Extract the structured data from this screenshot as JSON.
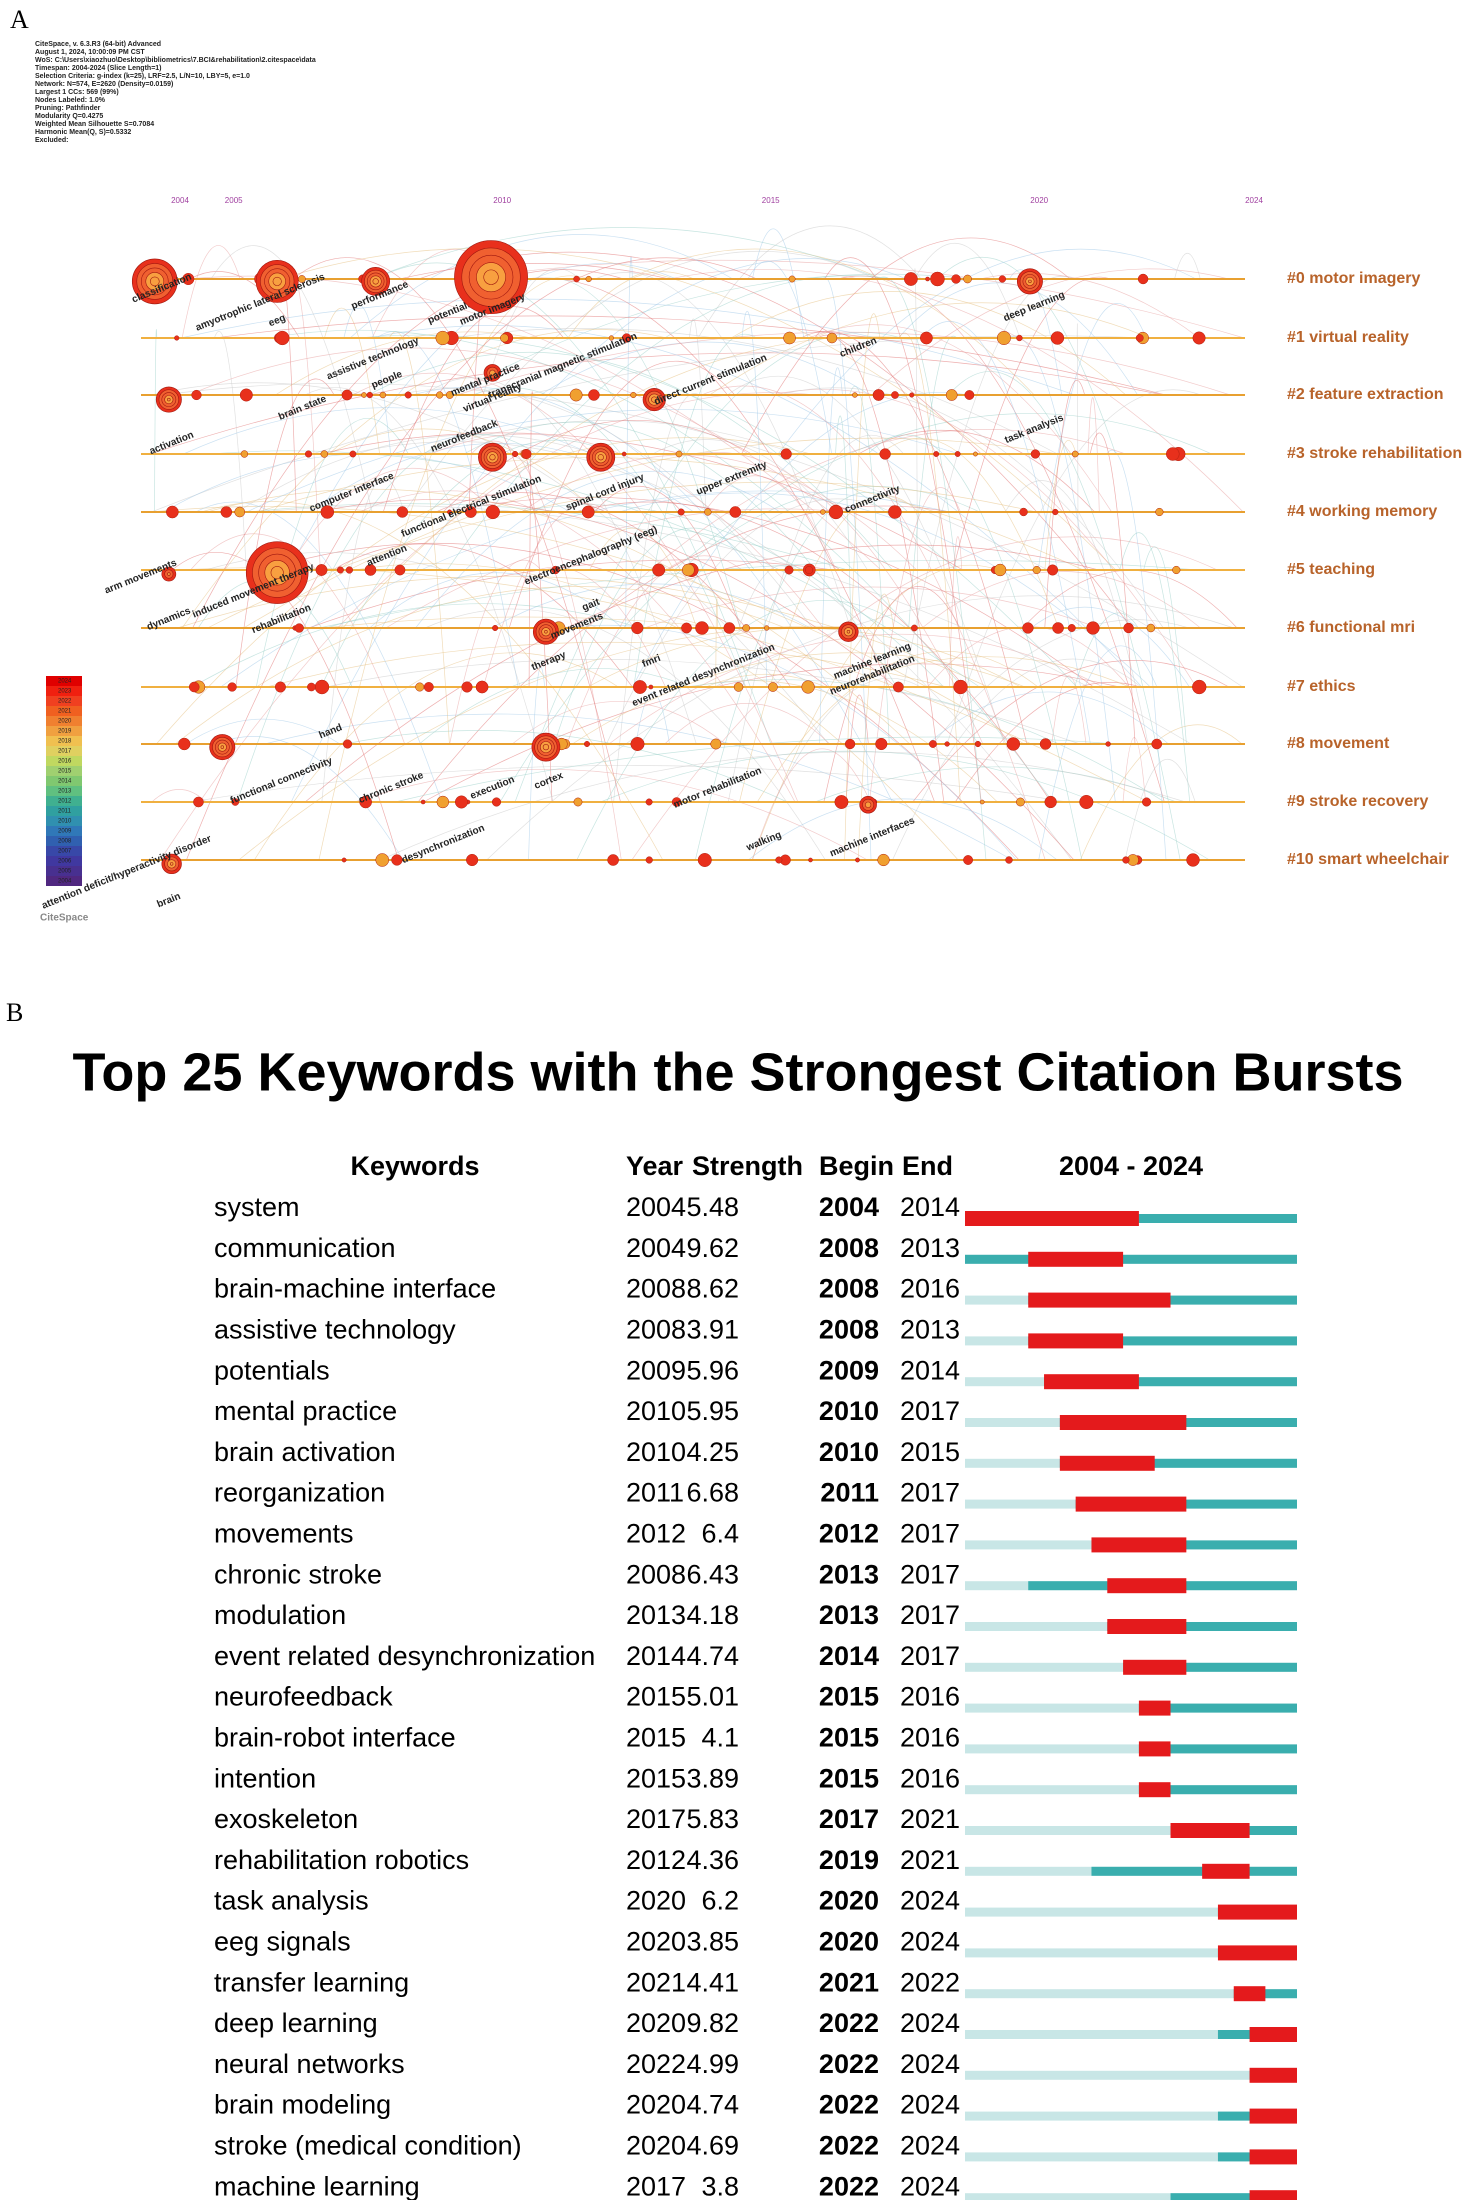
{
  "panel_a": {
    "label": "A",
    "info": [
      "CiteSpace, v. 6.3.R3 (64-bit) Advanced",
      "August 1, 2024, 10:00:09 PM CST",
      "WoS: C:\\Users\\xiaozhuo\\Desktop\\bibliometrics\\7.BCI&rehabilitation\\2.citespace\\data",
      "Timespan: 2004-2024 (Slice Length=1)",
      "Selection Criteria: g-index (k=25), LRF=2.5, L/N=10, LBY=5, e=1.0",
      "Network: N=574, E=2620 (Density=0.0159)",
      "Largest 1 CCs: 569 (99%)",
      "Nodes Labeled: 1.0%",
      "Pruning: Pathfinder",
      "Modularity Q=0.4275",
      "Weighted Mean Silhouette S=0.7084",
      "Harmonic Mean(Q, S)=0.5332",
      "Excluded:"
    ],
    "years": [
      2004,
      2005,
      2010,
      2015,
      2020,
      2024
    ],
    "clusters": [
      "#0 motor imagery",
      "#1 virtual reality",
      "#2 feature extraction",
      "#3 stroke rehabilitation",
      "#4 working memory",
      "#5 teaching",
      "#6 functional mri",
      "#7 ethics",
      "#8 movement",
      "#9 stroke recovery",
      "#10 smart wheelchair"
    ],
    "keywords": [
      "classification",
      "amyotrophic lateral sclerosis",
      "eeg",
      "performance",
      "potentials",
      "motor imagery",
      "assistive technology",
      "people",
      "mental practice",
      "virtual reality",
      "transcranial magnetic stimulation",
      "direct current stimulation",
      "activation",
      "brain state",
      "computer interface",
      "neurofeedback",
      "functional electrical stimulation",
      "spinal cord injury",
      "upper extremity",
      "induced movement therapy",
      "rehabilitation",
      "dynamics",
      "arm movements",
      "attention",
      "electroencephalography (eeg)",
      "gait",
      "movements",
      "therapy",
      "fmri",
      "event related desynchronization",
      "machine learning",
      "neurorehabilitation",
      "chronic stroke",
      "functional connectivity",
      "cortex",
      "execution",
      "motor rehabilitation",
      "desynchronization",
      "walking",
      "machine interfaces",
      "brain",
      "attention deficit/hyperactivity disorder",
      "hand",
      "connectivity",
      "children",
      "deep learning",
      "task analysis"
    ],
    "legend_years": [
      2024,
      2023,
      2022,
      2021,
      2020,
      2019,
      2018,
      2017,
      2016,
      2015,
      2014,
      2013,
      2012,
      2011,
      2010,
      2009,
      2008,
      2007,
      2006,
      2005,
      2004
    ],
    "logo": "CiteSpace"
  },
  "panel_b": {
    "label": "B",
    "title": "Top 25 Keywords with the Strongest Citation Bursts",
    "headers": {
      "keywords": "Keywords",
      "year": "Year",
      "strength": "Strength",
      "begin": "Begin",
      "end": "End"
    },
    "timespan": {
      "label": "2004 - 2024",
      "start": 2004,
      "end": 2024
    },
    "rows": [
      {
        "keyword": "system",
        "year": 2004,
        "strength": 5.48,
        "begin": 2004,
        "end": 2014
      },
      {
        "keyword": "communication",
        "year": 2004,
        "strength": 9.62,
        "begin": 2008,
        "end": 2013
      },
      {
        "keyword": "brain-machine interface",
        "year": 2008,
        "strength": 8.62,
        "begin": 2008,
        "end": 2016
      },
      {
        "keyword": "assistive technology",
        "year": 2008,
        "strength": 3.91,
        "begin": 2008,
        "end": 2013
      },
      {
        "keyword": "potentials",
        "year": 2009,
        "strength": 5.96,
        "begin": 2009,
        "end": 2014
      },
      {
        "keyword": "mental practice",
        "year": 2010,
        "strength": 5.95,
        "begin": 2010,
        "end": 2017
      },
      {
        "keyword": "brain activation",
        "year": 2010,
        "strength": 4.25,
        "begin": 2010,
        "end": 2015
      },
      {
        "keyword": "reorganization",
        "year": 2011,
        "strength": 6.68,
        "begin": 2011,
        "end": 2017
      },
      {
        "keyword": "movements",
        "year": 2012,
        "strength": 6.4,
        "begin": 2012,
        "end": 2017
      },
      {
        "keyword": "chronic stroke",
        "year": 2008,
        "strength": 6.43,
        "begin": 2013,
        "end": 2017
      },
      {
        "keyword": "modulation",
        "year": 2013,
        "strength": 4.18,
        "begin": 2013,
        "end": 2017
      },
      {
        "keyword": "event related desynchronization",
        "year": 2014,
        "strength": 4.74,
        "begin": 2014,
        "end": 2017
      },
      {
        "keyword": "neurofeedback",
        "year": 2015,
        "strength": 5.01,
        "begin": 2015,
        "end": 2016
      },
      {
        "keyword": "brain-robot interface",
        "year": 2015,
        "strength": 4.1,
        "begin": 2015,
        "end": 2016
      },
      {
        "keyword": "intention",
        "year": 2015,
        "strength": 3.89,
        "begin": 2015,
        "end": 2016
      },
      {
        "keyword": "exoskeleton",
        "year": 2017,
        "strength": 5.83,
        "begin": 2017,
        "end": 2021
      },
      {
        "keyword": "rehabilitation robotics",
        "year": 2012,
        "strength": 4.36,
        "begin": 2019,
        "end": 2021
      },
      {
        "keyword": "task analysis",
        "year": 2020,
        "strength": 6.2,
        "begin": 2020,
        "end": 2024
      },
      {
        "keyword": "eeg signals",
        "year": 2020,
        "strength": 3.85,
        "begin": 2020,
        "end": 2024
      },
      {
        "keyword": "transfer learning",
        "year": 2021,
        "strength": 4.41,
        "begin": 2021,
        "end": 2022
      },
      {
        "keyword": "deep learning",
        "year": 2020,
        "strength": 9.82,
        "begin": 2022,
        "end": 2024
      },
      {
        "keyword": "neural networks",
        "year": 2022,
        "strength": 4.99,
        "begin": 2022,
        "end": 2024
      },
      {
        "keyword": "brain modeling",
        "year": 2020,
        "strength": 4.74,
        "begin": 2022,
        "end": 2024
      },
      {
        "keyword": "stroke (medical condition)",
        "year": 2020,
        "strength": 4.69,
        "begin": 2022,
        "end": 2024
      },
      {
        "keyword": "machine learning",
        "year": 2017,
        "strength": 3.8,
        "begin": 2022,
        "end": 2024
      }
    ]
  }
}
